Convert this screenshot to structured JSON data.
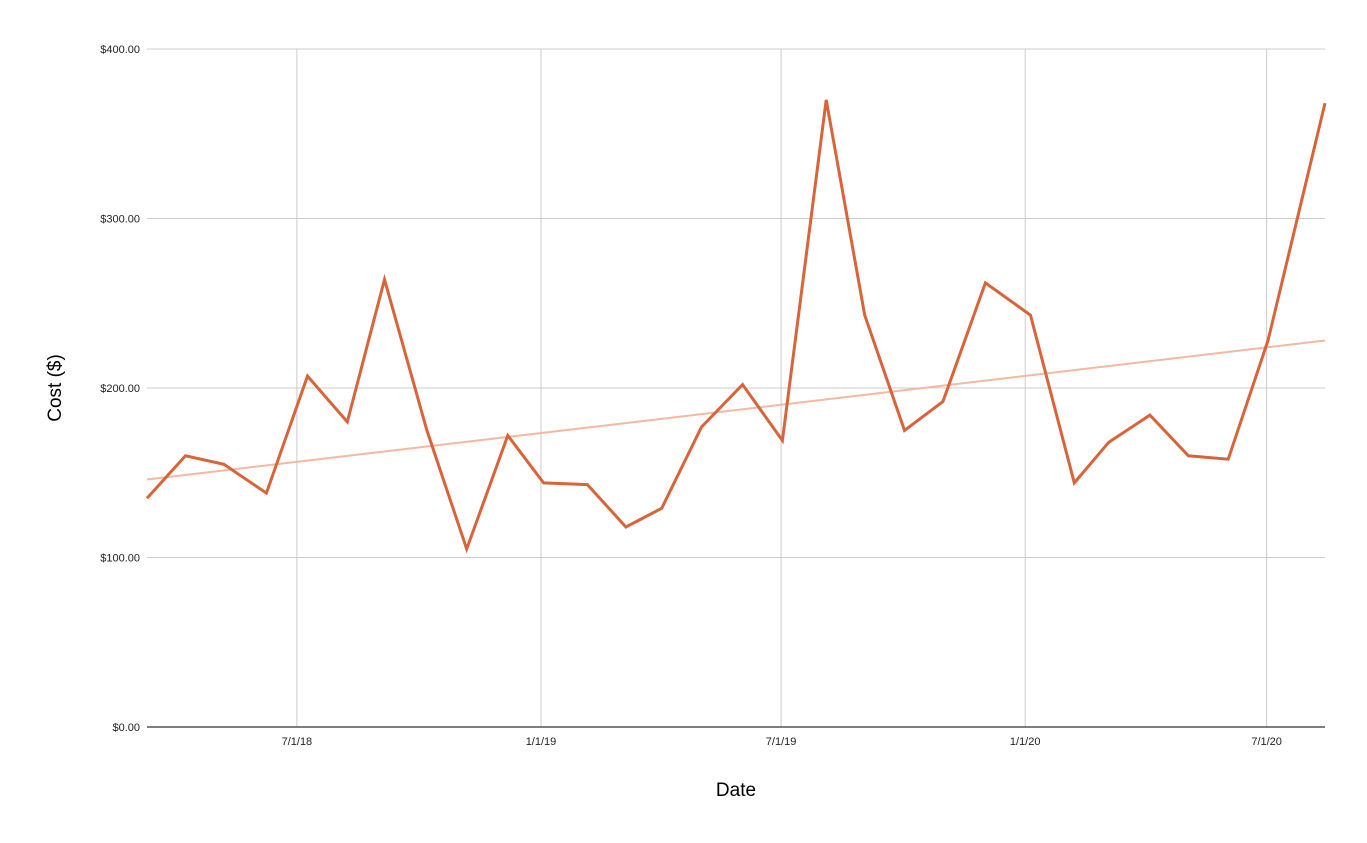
{
  "chart_data": {
    "type": "line",
    "title": "",
    "xlabel": "Date",
    "ylabel": "Cost ($)",
    "ylim": [
      0,
      400
    ],
    "xlim": [
      "2018-03-10",
      "2020-08-14"
    ],
    "grid": true,
    "legend": "none",
    "y_ticks": [
      {
        "value": 0,
        "label": "$0.00"
      },
      {
        "value": 100,
        "label": "$100.00"
      },
      {
        "value": 200,
        "label": "$200.00"
      },
      {
        "value": 300,
        "label": "$300.00"
      },
      {
        "value": 400,
        "label": "$400.00"
      }
    ],
    "x_ticks": [
      {
        "value": "2018-07-01",
        "label": "7/1/18"
      },
      {
        "value": "2019-01-01",
        "label": "1/1/19"
      },
      {
        "value": "2019-07-01",
        "label": "7/1/19"
      },
      {
        "value": "2020-01-01",
        "label": "1/1/20"
      },
      {
        "value": "2020-07-01",
        "label": "7/1/20"
      }
    ],
    "series": [
      {
        "color": "#d8643a",
        "points": [
          {
            "x": "2018-03-10",
            "y": 135
          },
          {
            "x": "2018-04-08",
            "y": 160
          },
          {
            "x": "2018-05-07",
            "y": 155
          },
          {
            "x": "2018-06-08",
            "y": 138
          },
          {
            "x": "2018-07-09",
            "y": 207
          },
          {
            "x": "2018-08-08",
            "y": 180
          },
          {
            "x": "2018-09-05",
            "y": 264
          },
          {
            "x": "2018-10-07",
            "y": 175
          },
          {
            "x": "2018-11-06",
            "y": 105
          },
          {
            "x": "2018-12-07",
            "y": 172
          },
          {
            "x": "2019-01-03",
            "y": 144
          },
          {
            "x": "2019-02-05",
            "y": 143
          },
          {
            "x": "2019-03-06",
            "y": 118
          },
          {
            "x": "2019-04-02",
            "y": 129
          },
          {
            "x": "2019-05-02",
            "y": 177
          },
          {
            "x": "2019-06-02",
            "y": 202
          },
          {
            "x": "2019-07-02",
            "y": 169
          },
          {
            "x": "2019-08-04",
            "y": 370
          },
          {
            "x": "2019-09-02",
            "y": 243
          },
          {
            "x": "2019-10-02",
            "y": 175
          },
          {
            "x": "2019-10-31",
            "y": 192
          },
          {
            "x": "2019-12-02",
            "y": 262
          },
          {
            "x": "2020-01-05",
            "y": 243
          },
          {
            "x": "2020-02-07",
            "y": 144
          },
          {
            "x": "2020-03-04",
            "y": 168
          },
          {
            "x": "2020-04-04",
            "y": 184
          },
          {
            "x": "2020-05-03",
            "y": 160
          },
          {
            "x": "2020-06-02",
            "y": 158
          },
          {
            "x": "2020-07-02",
            "y": 228
          },
          {
            "x": "2020-08-14",
            "y": 368
          }
        ]
      }
    ],
    "trendline": {
      "type": "linear",
      "color": "#f3b9a1",
      "start": {
        "x": "2018-03-10",
        "y": 146
      },
      "end": {
        "x": "2020-08-14",
        "y": 228
      }
    }
  }
}
